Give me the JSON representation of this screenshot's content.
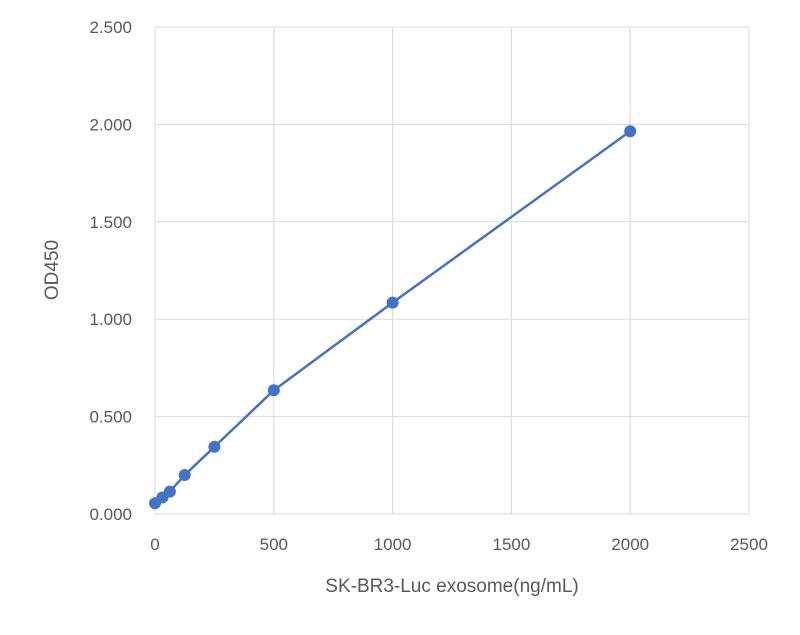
{
  "chart_data": {
    "type": "line",
    "title": "",
    "xlabel": "SK-BR3-Luc exosome(ng/mL)",
    "ylabel": "OD450",
    "xlim": [
      0,
      2500
    ],
    "ylim": [
      0,
      2.5
    ],
    "x_ticks": [
      0,
      500,
      1000,
      1500,
      2000,
      2500
    ],
    "x_tick_labels": [
      "0",
      "500",
      "1000",
      "1500",
      "2000",
      "2500"
    ],
    "y_ticks": [
      0,
      0.5,
      1.0,
      1.5,
      2.0,
      2.5
    ],
    "y_tick_labels": [
      "0.000",
      "0.500",
      "1.000",
      "1.500",
      "2.000",
      "2.500"
    ],
    "grid": true,
    "legend": "none",
    "series": [
      {
        "color": "#4472C4",
        "marker": "circle",
        "x": [
          0,
          31.25,
          62.5,
          125,
          250,
          500,
          1000,
          2000
        ],
        "y": [
          0.055,
          0.085,
          0.115,
          0.2,
          0.345,
          0.635,
          1.085,
          1.965
        ]
      }
    ]
  }
}
